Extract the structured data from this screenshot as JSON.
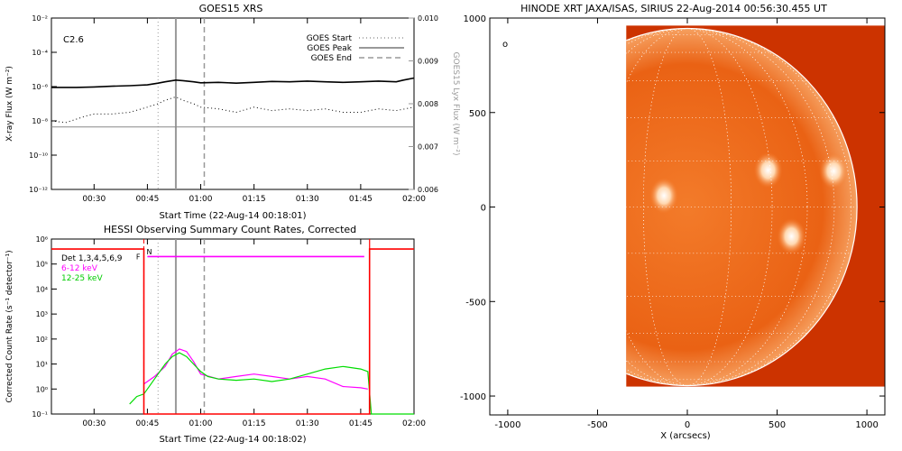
{
  "chart_data": [
    {
      "type": "line",
      "title": "GOES15 XRS",
      "class_label": "C2.6",
      "xlabel": "Start Time (22-Aug-14 00:18:01)",
      "ylabel": "X-ray Flux (W m⁻²)",
      "ylabel_right": "GOES15 Lyx Flux (W m⁻²)",
      "x_ticks": [
        "00:30",
        "00:45",
        "01:00",
        "01:15",
        "01:30",
        "01:45",
        "02:00"
      ],
      "y_ticks": [
        "10⁻²",
        "10⁻⁴",
        "10⁻⁶",
        "10⁻⁸",
        "10⁻¹⁰",
        "10⁻¹²"
      ],
      "y_right_ticks": [
        "0.010",
        "0.009",
        "0.008",
        "0.007",
        "0.006"
      ],
      "ylim_log10": [
        -12,
        -2
      ],
      "y_right_lim": [
        0.006,
        0.01
      ],
      "xlim_minutes": [
        18.0,
        120.0
      ],
      "legend": [
        {
          "label": "GOES Start",
          "style": "dotted"
        },
        {
          "label": "GOES Peak",
          "style": "solid"
        },
        {
          "label": "GOES End",
          "style": "dashed"
        }
      ],
      "markers_minutes": {
        "start": 48,
        "peak": 53,
        "end": 61
      },
      "series": [
        {
          "color": "#000000",
          "style": "solid",
          "x": [
            18,
            25,
            30,
            35,
            40,
            45,
            48,
            50,
            53,
            55,
            58,
            60,
            65,
            70,
            75,
            80,
            85,
            90,
            95,
            100,
            105,
            110,
            115,
            117,
            120
          ],
          "log10_y": [
            -6.05,
            -6.05,
            -6.02,
            -5.98,
            -5.95,
            -5.9,
            -5.8,
            -5.72,
            -5.62,
            -5.65,
            -5.72,
            -5.78,
            -5.75,
            -5.8,
            -5.75,
            -5.7,
            -5.72,
            -5.68,
            -5.72,
            -5.75,
            -5.72,
            -5.68,
            -5.72,
            -5.62,
            -5.5
          ]
        },
        {
          "color": "#000000",
          "style": "dotted",
          "x": [
            18,
            22,
            25,
            28,
            30,
            35,
            40,
            45,
            48,
            50,
            53,
            55,
            58,
            60,
            65,
            70,
            75,
            80,
            85,
            90,
            95,
            100,
            105,
            110,
            115,
            120
          ],
          "log10_y": [
            -8.0,
            -8.1,
            -7.9,
            -7.7,
            -7.6,
            -7.6,
            -7.5,
            -7.2,
            -7.0,
            -6.8,
            -6.6,
            -6.8,
            -7.0,
            -7.2,
            -7.3,
            -7.5,
            -7.2,
            -7.4,
            -7.3,
            -7.4,
            -7.3,
            -7.5,
            -7.5,
            -7.3,
            -7.4,
            -7.2
          ]
        },
        {
          "color": "#888888",
          "style": "solid",
          "x": [
            18,
            30,
            45,
            60,
            75,
            90,
            105,
            120
          ],
          "log10_y": [
            -8.35,
            -8.35,
            -8.35,
            -8.35,
            -8.35,
            -8.35,
            -8.35,
            -8.35
          ]
        }
      ]
    },
    {
      "type": "line",
      "title": "HESSI Observing Summary Count Rates, Corrected",
      "xlabel": "Start Time (22-Aug-14 00:18:02)",
      "ylabel": "Corrected Count Rate (s⁻¹ detector⁻¹)",
      "x_ticks": [
        "00:30",
        "00:45",
        "01:00",
        "01:15",
        "01:30",
        "01:45",
        "02:00"
      ],
      "y_ticks": [
        "10⁶",
        "10⁵",
        "10⁴",
        "10³",
        "10²",
        "10¹",
        "10⁰",
        "10⁻¹"
      ],
      "ylim_log10": [
        -1,
        6
      ],
      "xlim_minutes": [
        18.0,
        120.0
      ],
      "legend_title": "Det 1,3,4,5,6,9",
      "legend": [
        {
          "label": "6-12 keV",
          "color": "#ff00ff"
        },
        {
          "label": "12-25 keV",
          "color": "#00dd00"
        }
      ],
      "flags": {
        "night_label": "N",
        "flare_label": "F"
      },
      "markers_minutes": {
        "start": 48,
        "peak": 53,
        "end": 61,
        "night_start": 44,
        "night_end": 107.5
      },
      "series": [
        {
          "name": "6-12 keV",
          "color": "#ff00ff",
          "x": [
            44,
            47,
            50,
            52,
            54,
            56,
            58,
            60,
            65,
            70,
            75,
            80,
            85,
            90,
            95,
            100,
            105,
            107
          ],
          "log10_y": [
            0.2,
            0.5,
            0.9,
            1.4,
            1.6,
            1.5,
            1.1,
            0.6,
            0.4,
            0.5,
            0.6,
            0.5,
            0.4,
            0.5,
            0.4,
            0.1,
            0.05,
            0.0
          ]
        },
        {
          "name": "12-25 keV",
          "color": "#00dd00",
          "x": [
            40,
            42,
            44,
            46,
            48,
            50,
            52,
            54,
            56,
            58,
            60,
            62,
            65,
            70,
            75,
            80,
            85,
            90,
            95,
            100,
            105,
            107,
            108,
            120
          ],
          "log10_y": [
            -0.6,
            -0.3,
            -0.2,
            0.2,
            0.6,
            1.0,
            1.3,
            1.45,
            1.3,
            1.0,
            0.7,
            0.5,
            0.4,
            0.35,
            0.4,
            0.3,
            0.4,
            0.6,
            0.8,
            0.9,
            0.8,
            0.7,
            -1,
            -1
          ]
        },
        {
          "name": "flags",
          "color": "#ff0000",
          "x": [
            18,
            44,
            44,
            107.5,
            107.5,
            120
          ],
          "log10_y": [
            5.6,
            5.6,
            -1,
            -1,
            5.6,
            5.6
          ]
        }
      ]
    },
    {
      "type": "heatmap",
      "title": "HINODE XRT JAXA/ISAS, SIRIUS 22-Aug-2014 00:56:30.455 UT",
      "xlabel": "X (arcsecs)",
      "x_ticks": [
        -1000,
        -500,
        0,
        500,
        1000
      ],
      "y_ticks": [
        1000,
        500,
        0,
        -500,
        -1000
      ],
      "xlim": [
        -1100,
        1100
      ],
      "ylim": [
        -1100,
        1000
      ],
      "solar_radius_arcsec": 945,
      "image_extent_x": [
        -340,
        1100
      ],
      "image_extent_y": [
        -950,
        960
      ],
      "bright_regions": [
        {
          "x": -130,
          "y": 60
        },
        {
          "x": 450,
          "y": 195
        },
        {
          "x": 580,
          "y": -155
        },
        {
          "x": 815,
          "y": 190
        }
      ],
      "colors": {
        "disk": "#e85a10",
        "background": "#cc3300",
        "grid": "#ffffff"
      }
    }
  ]
}
